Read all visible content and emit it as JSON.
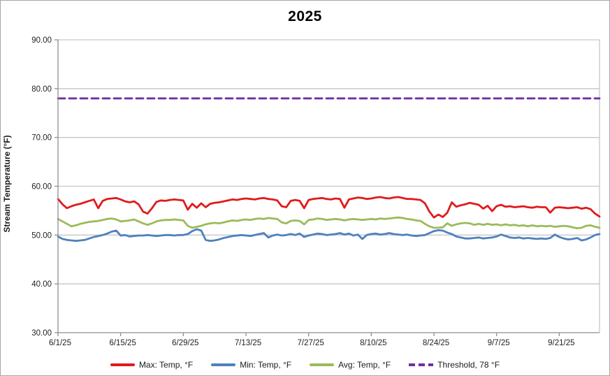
{
  "chart": {
    "title": "2025",
    "y_axis_title": "Stream Temperature (°F)"
  },
  "colors": {
    "gridline": "#c6c6c6",
    "axis": "#8f8f8f",
    "tick_text": "#1f1f1f",
    "frame_border": "#a6a6a6",
    "max_red": "#e01b1b",
    "min_blue": "#4f81bd",
    "avg_green": "#9bbb59",
    "threshold_purple": "#7030a0"
  },
  "chart_data": {
    "type": "line",
    "title": "2025",
    "xlabel": "",
    "ylabel": "Stream Temperature (°F)",
    "ylim": [
      30,
      90
    ],
    "grid": true,
    "legend_position": "bottom",
    "ytick_labels": [
      "90.00",
      "80.00",
      "70.00",
      "60.00",
      "50.00",
      "40.00",
      "30.00"
    ],
    "ytick_values": [
      90,
      80,
      70,
      60,
      50,
      40,
      30
    ],
    "xtick_labels": [
      "6/1/25",
      "6/15/25",
      "6/29/25",
      "7/13/25",
      "7/27/25",
      "8/10/25",
      "8/24/25",
      "9/7/25",
      "9/21/25"
    ],
    "xtick_indices": [
      0,
      14,
      28,
      42,
      56,
      70,
      84,
      98,
      112
    ],
    "x": [
      "6/1/25",
      "6/2/25",
      "6/3/25",
      "6/4/25",
      "6/5/25",
      "6/6/25",
      "6/7/25",
      "6/8/25",
      "6/9/25",
      "6/10/25",
      "6/11/25",
      "6/12/25",
      "6/13/25",
      "6/14/25",
      "6/15/25",
      "6/16/25",
      "6/17/25",
      "6/18/25",
      "6/19/25",
      "6/20/25",
      "6/21/25",
      "6/22/25",
      "6/23/25",
      "6/24/25",
      "6/25/25",
      "6/26/25",
      "6/27/25",
      "6/28/25",
      "6/29/25",
      "6/30/25",
      "7/1/25",
      "7/2/25",
      "7/3/25",
      "7/4/25",
      "7/5/25",
      "7/6/25",
      "7/7/25",
      "7/8/25",
      "7/9/25",
      "7/10/25",
      "7/11/25",
      "7/12/25",
      "7/13/25",
      "7/14/25",
      "7/15/25",
      "7/16/25",
      "7/17/25",
      "7/18/25",
      "7/19/25",
      "7/20/25",
      "7/21/25",
      "7/22/25",
      "7/23/25",
      "7/24/25",
      "7/25/25",
      "7/26/25",
      "7/27/25",
      "7/28/25",
      "7/29/25",
      "7/30/25",
      "7/31/25",
      "8/1/25",
      "8/2/25",
      "8/3/25",
      "8/4/25",
      "8/5/25",
      "8/6/25",
      "8/7/25",
      "8/8/25",
      "8/9/25",
      "8/10/25",
      "8/11/25",
      "8/12/25",
      "8/13/25",
      "8/14/25",
      "8/15/25",
      "8/16/25",
      "8/17/25",
      "8/18/25",
      "8/19/25",
      "8/20/25",
      "8/21/25",
      "8/22/25",
      "8/23/25",
      "8/24/25",
      "8/25/25",
      "8/26/25",
      "8/27/25",
      "8/28/25",
      "8/29/25",
      "8/30/25",
      "8/31/25",
      "9/1/25",
      "9/2/25",
      "9/3/25",
      "9/4/25",
      "9/5/25",
      "9/6/25",
      "9/7/25",
      "9/8/25",
      "9/9/25",
      "9/10/25",
      "9/11/25",
      "9/12/25",
      "9/13/25",
      "9/14/25",
      "9/15/25",
      "9/16/25",
      "9/17/25",
      "9/18/25",
      "9/19/25",
      "9/20/25",
      "9/21/25",
      "9/22/25",
      "9/23/25",
      "9/24/25",
      "9/25/25",
      "9/26/25",
      "9/27/25",
      "9/28/25",
      "9/29/25",
      "9/30/25"
    ],
    "series": [
      {
        "key": "max",
        "name": "Max: Temp, °F",
        "color": "#e01b1b",
        "style": "solid",
        "values": [
          57.4,
          56.3,
          55.5,
          55.9,
          56.2,
          56.4,
          56.7,
          57.0,
          57.3,
          55.5,
          57.0,
          57.4,
          57.5,
          57.6,
          57.3,
          56.9,
          56.7,
          56.9,
          56.3,
          54.8,
          54.4,
          55.5,
          56.8,
          57.1,
          57.0,
          57.2,
          57.3,
          57.2,
          57.1,
          55.2,
          56.4,
          55.6,
          56.5,
          55.7,
          56.4,
          56.6,
          56.7,
          56.9,
          57.1,
          57.3,
          57.2,
          57.4,
          57.5,
          57.4,
          57.3,
          57.5,
          57.6,
          57.4,
          57.3,
          57.1,
          55.9,
          55.7,
          57.0,
          57.2,
          57.0,
          55.5,
          57.2,
          57.4,
          57.5,
          57.6,
          57.4,
          57.3,
          57.5,
          57.4,
          55.6,
          57.3,
          57.5,
          57.7,
          57.6,
          57.4,
          57.5,
          57.7,
          57.8,
          57.6,
          57.5,
          57.7,
          57.8,
          57.6,
          57.4,
          57.4,
          57.3,
          57.2,
          56.5,
          54.8,
          53.6,
          54.2,
          53.7,
          54.6,
          56.7,
          55.8,
          56.1,
          56.3,
          56.6,
          56.4,
          56.2,
          55.4,
          56.0,
          54.9,
          55.9,
          56.2,
          55.8,
          55.9,
          55.7,
          55.8,
          55.9,
          55.7,
          55.6,
          55.8,
          55.7,
          55.7,
          54.6,
          55.6,
          55.7,
          55.6,
          55.5,
          55.6,
          55.7,
          55.4,
          55.6,
          55.3,
          54.4,
          53.8
        ]
      },
      {
        "key": "min",
        "name": "Min: Temp, °F",
        "color": "#4f81bd",
        "style": "solid",
        "values": [
          49.7,
          49.2,
          49.0,
          48.9,
          48.8,
          48.9,
          49.0,
          49.3,
          49.6,
          49.8,
          50.0,
          50.3,
          50.7,
          50.9,
          49.9,
          50.0,
          49.7,
          49.8,
          49.9,
          49.9,
          50.0,
          49.9,
          49.8,
          49.9,
          50.0,
          50.0,
          49.9,
          50.0,
          50.0,
          50.2,
          50.8,
          51.2,
          50.9,
          49.0,
          48.8,
          48.9,
          49.1,
          49.4,
          49.6,
          49.8,
          49.9,
          50.0,
          49.9,
          49.8,
          50.0,
          50.2,
          50.4,
          49.5,
          49.9,
          50.1,
          49.9,
          50.0,
          50.2,
          50.0,
          50.3,
          49.6,
          49.9,
          50.1,
          50.3,
          50.2,
          50.0,
          50.1,
          50.2,
          50.4,
          50.1,
          50.3,
          49.9,
          50.1,
          49.2,
          50.0,
          50.2,
          50.3,
          50.1,
          50.2,
          50.4,
          50.2,
          50.1,
          50.0,
          50.1,
          49.9,
          49.8,
          49.9,
          50.0,
          50.4,
          50.8,
          51.0,
          50.9,
          50.5,
          50.2,
          49.7,
          49.5,
          49.3,
          49.3,
          49.4,
          49.5,
          49.3,
          49.4,
          49.5,
          49.7,
          50.1,
          49.8,
          49.5,
          49.4,
          49.5,
          49.3,
          49.4,
          49.3,
          49.2,
          49.3,
          49.2,
          49.4,
          50.1,
          49.6,
          49.3,
          49.1,
          49.2,
          49.4,
          48.9,
          49.1,
          49.5,
          50.0,
          50.2
        ]
      },
      {
        "key": "avg",
        "name": "Avg: Temp, °F",
        "color": "#9bbb59",
        "style": "solid",
        "values": [
          53.3,
          52.8,
          52.3,
          51.8,
          52.0,
          52.3,
          52.5,
          52.7,
          52.8,
          52.9,
          53.1,
          53.3,
          53.4,
          53.2,
          52.8,
          52.9,
          53.0,
          53.2,
          52.8,
          52.4,
          52.1,
          52.4,
          52.8,
          53.0,
          53.1,
          53.1,
          53.2,
          53.1,
          53.0,
          51.9,
          51.5,
          51.7,
          51.9,
          52.2,
          52.4,
          52.5,
          52.4,
          52.6,
          52.8,
          53.0,
          52.9,
          53.1,
          53.2,
          53.1,
          53.3,
          53.4,
          53.3,
          53.5,
          53.4,
          53.3,
          52.6,
          52.4,
          52.9,
          53.0,
          52.9,
          52.2,
          53.1,
          53.2,
          53.4,
          53.3,
          53.1,
          53.2,
          53.3,
          53.2,
          53.0,
          53.2,
          53.3,
          53.2,
          53.1,
          53.2,
          53.3,
          53.2,
          53.4,
          53.3,
          53.4,
          53.5,
          53.6,
          53.5,
          53.3,
          53.2,
          53.0,
          52.9,
          52.3,
          51.8,
          51.5,
          51.5,
          51.6,
          52.4,
          51.9,
          52.2,
          52.4,
          52.5,
          52.4,
          52.1,
          52.3,
          52.1,
          52.3,
          52.1,
          52.2,
          52.0,
          52.2,
          52.0,
          52.1,
          51.9,
          52.0,
          51.8,
          52.0,
          51.8,
          51.9,
          51.8,
          51.9,
          51.7,
          51.8,
          51.9,
          51.8,
          51.6,
          51.4,
          51.5,
          51.9,
          52.0,
          51.7,
          51.5
        ]
      },
      {
        "key": "threshold",
        "name": "Threshold, 78 °F",
        "color": "#7030a0",
        "style": "dashed",
        "constant": 78
      }
    ]
  }
}
